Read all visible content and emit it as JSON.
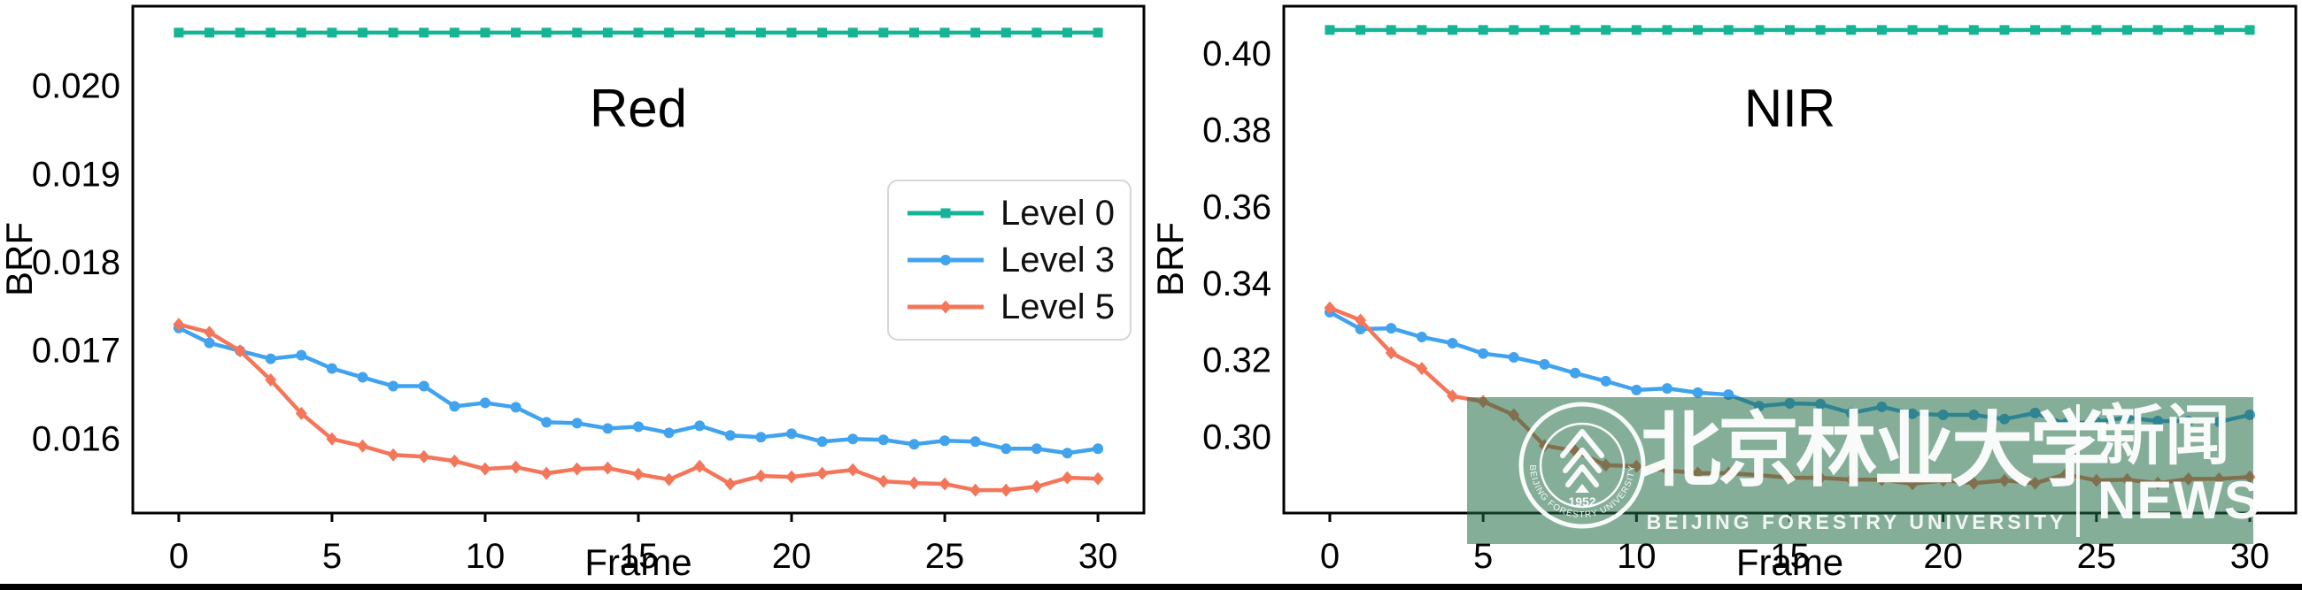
{
  "colors": {
    "level0_green": "#15b494",
    "level3_blue": "#41a3ee",
    "level5_orange": "#f4765a",
    "axis_black": "#000000",
    "watermark_band": "rgba(32,108,70,0.55)"
  },
  "legend": {
    "items": [
      {
        "label": "Level 0",
        "color": "#15b494",
        "marker": "square"
      },
      {
        "label": "Level 3",
        "color": "#41a3ee",
        "marker": "circle"
      },
      {
        "label": "Level 5",
        "color": "#f4765a",
        "marker": "diamond"
      }
    ]
  },
  "watermark": {
    "band_color": "rgba(32,108,70,0.55)",
    "seal_year": "1952",
    "seal_ring_text": "BEIJING FORESTRY UNIVERSITY",
    "calligraphy": "北京林业大学",
    "latin_caption": "BEIJING FORESTRY UNIVERSITY",
    "news_cn": "新闻",
    "news_en": "NEWS"
  },
  "chart_data": [
    {
      "type": "line",
      "title": "Red",
      "xlabel": "Frame",
      "ylabel": "BRF",
      "x": [
        0,
        1,
        2,
        3,
        4,
        5,
        6,
        7,
        8,
        9,
        10,
        11,
        12,
        13,
        14,
        15,
        16,
        17,
        18,
        19,
        20,
        21,
        22,
        23,
        24,
        25,
        26,
        27,
        28,
        29,
        30
      ],
      "xticks": [
        0,
        5,
        10,
        15,
        20,
        25,
        30
      ],
      "yticks": [
        0.016,
        0.017,
        0.018,
        0.019,
        0.02
      ],
      "ytick_labels": [
        "0.016",
        "0.017",
        "0.018",
        "0.019",
        "0.020"
      ],
      "xlim": [
        -1.5,
        31.5
      ],
      "ylim": [
        0.01515,
        0.0209
      ],
      "grid": false,
      "legend_position": "center right",
      "series": [
        {
          "name": "Level 0",
          "color": "#15b494",
          "marker": "square",
          "values": [
            0.0206,
            0.0206,
            0.0206,
            0.0206,
            0.0206,
            0.0206,
            0.0206,
            0.0206,
            0.0206,
            0.0206,
            0.0206,
            0.0206,
            0.0206,
            0.0206,
            0.0206,
            0.0206,
            0.0206,
            0.0206,
            0.0206,
            0.0206,
            0.0206,
            0.0206,
            0.0206,
            0.0206,
            0.0206,
            0.0206,
            0.0206,
            0.0206,
            0.0206,
            0.0206,
            0.0206
          ]
        },
        {
          "name": "Level 3",
          "color": "#41a3ee",
          "marker": "circle",
          "values": [
            0.01725,
            0.01708,
            0.01699,
            0.0169,
            0.01694,
            0.01679,
            0.01669,
            0.01659,
            0.01659,
            0.01636,
            0.0164,
            0.01635,
            0.01618,
            0.01617,
            0.01611,
            0.01613,
            0.01606,
            0.01614,
            0.01603,
            0.01601,
            0.01605,
            0.01596,
            0.01599,
            0.01598,
            0.01593,
            0.01597,
            0.01596,
            0.01588,
            0.01588,
            0.01583,
            0.01588
          ]
        },
        {
          "name": "Level 5",
          "color": "#f4765a",
          "marker": "diamond",
          "values": [
            0.01729,
            0.0172,
            0.01699,
            0.01666,
            0.01628,
            0.01599,
            0.01591,
            0.01581,
            0.01579,
            0.01574,
            0.01565,
            0.01567,
            0.0156,
            0.01565,
            0.01566,
            0.01559,
            0.01553,
            0.01568,
            0.01548,
            0.01557,
            0.01556,
            0.0156,
            0.01564,
            0.01551,
            0.01549,
            0.01548,
            0.01541,
            0.01541,
            0.01545,
            0.01555,
            0.01554
          ]
        }
      ]
    },
    {
      "type": "line",
      "title": "NIR",
      "xlabel": "Frame",
      "ylabel": "BRF",
      "x": [
        0,
        1,
        2,
        3,
        4,
        5,
        6,
        7,
        8,
        9,
        10,
        11,
        12,
        13,
        14,
        15,
        16,
        17,
        18,
        19,
        20,
        21,
        22,
        23,
        24,
        25,
        26,
        27,
        28,
        29,
        30
      ],
      "xticks": [
        0,
        5,
        10,
        15,
        20,
        25,
        30
      ],
      "yticks": [
        0.3,
        0.32,
        0.34,
        0.36,
        0.38,
        0.4
      ],
      "ytick_labels": [
        "0.30",
        "0.32",
        "0.34",
        "0.36",
        "0.38",
        "0.40"
      ],
      "xlim": [
        -1.5,
        31.5
      ],
      "ylim": [
        0.28,
        0.4122
      ],
      "grid": false,
      "legend_position": "none",
      "series": [
        {
          "name": "Level 0",
          "color": "#15b494",
          "marker": "square",
          "values": [
            0.406,
            0.406,
            0.406,
            0.406,
            0.406,
            0.406,
            0.406,
            0.406,
            0.406,
            0.406,
            0.406,
            0.406,
            0.406,
            0.406,
            0.406,
            0.406,
            0.406,
            0.406,
            0.406,
            0.406,
            0.406,
            0.406,
            0.406,
            0.406,
            0.406,
            0.406,
            0.406,
            0.406,
            0.406,
            0.406,
            0.406
          ]
        },
        {
          "name": "Level 3",
          "color": "#41a3ee",
          "marker": "circle",
          "values": [
            0.3324,
            0.328,
            0.3282,
            0.3259,
            0.3243,
            0.3216,
            0.3206,
            0.3188,
            0.3165,
            0.3144,
            0.3121,
            0.3125,
            0.3114,
            0.3109,
            0.3079,
            0.3086,
            0.3084,
            0.3061,
            0.3077,
            0.3059,
            0.3056,
            0.3056,
            0.3045,
            0.3061,
            0.3033,
            0.3038,
            0.3049,
            0.304,
            0.304,
            0.3038,
            0.3056
          ]
        },
        {
          "name": "Level 5",
          "color": "#f4765a",
          "marker": "diamond",
          "values": [
            0.3335,
            0.3303,
            0.3218,
            0.3177,
            0.3105,
            0.3091,
            0.3056,
            0.2976,
            0.2962,
            0.2925,
            0.2922,
            0.2911,
            0.2904,
            0.2904,
            0.2899,
            0.2892,
            0.2892,
            0.2887,
            0.2887,
            0.2876,
            0.2885,
            0.2878,
            0.2885,
            0.2878,
            0.2901,
            0.2885,
            0.2887,
            0.2878,
            0.2889,
            0.2889,
            0.2894
          ]
        }
      ]
    }
  ]
}
